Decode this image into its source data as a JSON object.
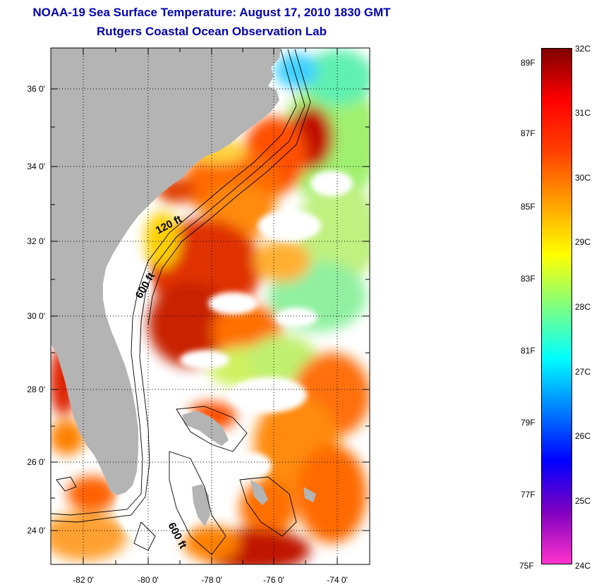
{
  "title": {
    "line1": "NOAA-19 Sea Surface Temperature:  August 17, 2010 1830 GMT",
    "line2": "Rutgers Coastal Ocean Observation Lab"
  },
  "map": {
    "lat_ticks": [
      "36 0'",
      "34 0'",
      "32 0'",
      "30 0'",
      "28 0'",
      "26 0'",
      "24 0'"
    ],
    "lon_ticks": [
      "-82 0'",
      "-80 0'",
      "-78 0'",
      "-76 0'",
      "-74 0'"
    ],
    "contours": {
      "c120": "120 ft",
      "c600a": "600 ft",
      "c600b": "600 ft"
    }
  },
  "colorbar": {
    "celsius": [
      "32C",
      "31C",
      "30C",
      "29C",
      "28C",
      "27C",
      "26C",
      "25C",
      "24C"
    ],
    "fahrenheit": [
      "89F",
      "87F",
      "85F",
      "83F",
      "81F",
      "79F",
      "77F",
      "75F"
    ],
    "colors": [
      "#ff33cc",
      "#8000c0",
      "#0000ff",
      "#0080ff",
      "#00ffff",
      "#80ff80",
      "#ffff00",
      "#ffa000",
      "#ff4000",
      "#ff0000",
      "#800000"
    ]
  },
  "colors": {
    "title": "#0000b4",
    "land": "#b4b4b4",
    "cloud": "#ffffff"
  }
}
